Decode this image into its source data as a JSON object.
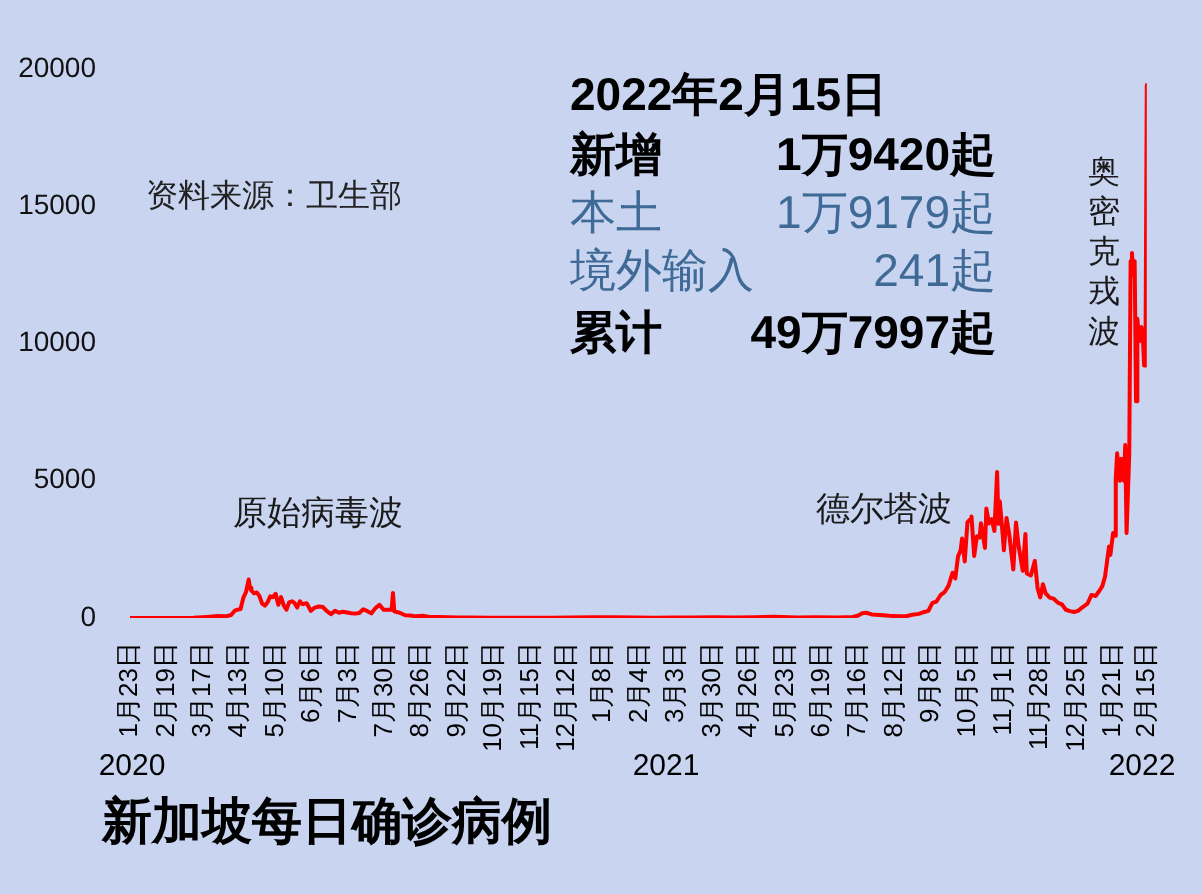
{
  "chart_data": {
    "type": "line",
    "title": "新加坡每日确诊病例",
    "x": [
      "2020-01-23",
      "2020-02-10",
      "2020-02-28",
      "2020-03-10",
      "2020-03-20",
      "2020-03-28",
      "2020-04-03",
      "2020-04-07",
      "2020-04-10",
      "2020-04-14",
      "2020-04-16",
      "2020-04-18",
      "2020-04-20",
      "2020-04-21",
      "2020-04-22",
      "2020-04-24",
      "2020-04-26",
      "2020-04-28",
      "2020-04-30",
      "2020-05-02",
      "2020-05-04",
      "2020-05-06",
      "2020-05-08",
      "2020-05-10",
      "2020-05-12",
      "2020-05-14",
      "2020-05-16",
      "2020-05-18",
      "2020-05-20",
      "2020-05-22",
      "2020-05-24",
      "2020-05-26",
      "2020-05-28",
      "2020-05-30",
      "2020-06-02",
      "2020-06-05",
      "2020-06-08",
      "2020-06-11",
      "2020-06-14",
      "2020-06-17",
      "2020-06-20",
      "2020-06-23",
      "2020-06-26",
      "2020-06-29",
      "2020-07-02",
      "2020-07-05",
      "2020-07-08",
      "2020-07-11",
      "2020-07-14",
      "2020-07-17",
      "2020-07-20",
      "2020-07-23",
      "2020-07-26",
      "2020-07-29",
      "2020-08-01",
      "2020-08-04",
      "2020-08-05",
      "2020-08-06",
      "2020-08-10",
      "2020-08-14",
      "2020-08-18",
      "2020-08-22",
      "2020-08-27",
      "2020-09-01",
      "2020-09-08",
      "2020-09-15",
      "2020-09-22",
      "2020-10-01",
      "2020-10-15",
      "2020-11-01",
      "2020-11-15",
      "2020-12-01",
      "2020-12-15",
      "2020-12-31",
      "2021-01-15",
      "2021-02-01",
      "2021-02-15",
      "2021-03-01",
      "2021-03-15",
      "2021-04-01",
      "2021-04-15",
      "2021-05-01",
      "2021-05-15",
      "2021-06-01",
      "2021-06-15",
      "2021-07-01",
      "2021-07-12",
      "2021-07-16",
      "2021-07-19",
      "2021-07-22",
      "2021-07-26",
      "2021-08-01",
      "2021-08-08",
      "2021-08-15",
      "2021-08-20",
      "2021-08-25",
      "2021-08-30",
      "2021-09-03",
      "2021-09-06",
      "2021-09-09",
      "2021-09-12",
      "2021-09-15",
      "2021-09-18",
      "2021-09-21",
      "2021-09-24",
      "2021-09-26",
      "2021-09-28",
      "2021-09-30",
      "2021-10-01",
      "2021-10-03",
      "2021-10-05",
      "2021-10-07",
      "2021-10-08",
      "2021-10-10",
      "2021-10-12",
      "2021-10-14",
      "2021-10-15",
      "2021-10-18",
      "2021-10-19",
      "2021-10-21",
      "2021-10-23",
      "2021-10-25",
      "2021-10-27",
      "2021-10-28",
      "2021-10-29",
      "2021-10-31",
      "2021-11-01",
      "2021-11-03",
      "2021-11-05",
      "2021-11-08",
      "2021-11-10",
      "2021-11-12",
      "2021-11-15",
      "2021-11-17",
      "2021-11-18",
      "2021-11-21",
      "2021-11-24",
      "2021-11-26",
      "2021-11-28",
      "2021-11-30",
      "2021-12-02",
      "2021-12-05",
      "2021-12-08",
      "2021-12-11",
      "2021-12-14",
      "2021-12-17",
      "2021-12-20",
      "2021-12-23",
      "2021-12-26",
      "2021-12-29",
      "2022-01-02",
      "2022-01-05",
      "2022-01-08",
      "2022-01-11",
      "2022-01-13",
      "2022-01-15",
      "2022-01-18",
      "2022-01-19",
      "2022-01-21",
      "2022-01-22",
      "2022-01-23",
      "2022-01-24",
      "2022-01-25",
      "2022-01-26",
      "2022-01-27",
      "2022-01-28",
      "2022-01-29",
      "2022-01-30",
      "2022-01-31",
      "2022-02-01",
      "2022-02-02",
      "2022-02-03",
      "2022-02-04",
      "2022-02-05",
      "2022-02-06",
      "2022-02-07",
      "2022-02-08",
      "2022-02-09",
      "2022-02-10",
      "2022-02-11",
      "2022-02-12",
      "2022-02-13",
      "2022-02-14",
      "2022-02-15"
    ],
    "values": [
      0,
      0,
      0,
      10,
      40,
      70,
      60,
      110,
      280,
      330,
      730,
      940,
      1400,
      1100,
      1000,
      900,
      930,
      800,
      520,
      450,
      570,
      790,
      760,
      880,
      480,
      760,
      460,
      300,
      570,
      610,
      550,
      380,
      610,
      500,
      540,
      260,
      380,
      420,
      400,
      250,
      140,
      260,
      190,
      230,
      200,
      170,
      160,
      180,
      320,
      250,
      170,
      360,
      480,
      300,
      300,
      300,
      910,
      240,
      190,
      100,
      90,
      60,
      80,
      40,
      40,
      30,
      20,
      20,
      10,
      10,
      10,
      10,
      20,
      30,
      30,
      20,
      10,
      20,
      20,
      30,
      20,
      30,
      50,
      20,
      30,
      20,
      40,
      90,
      170,
      190,
      130,
      110,
      80,
      60,
      60,
      120,
      150,
      220,
      260,
      550,
      600,
      830,
      940,
      1180,
      1650,
      1440,
      2240,
      2480,
      2900,
      2060,
      3490,
      3590,
      3700,
      2260,
      2980,
      2930,
      3450,
      2550,
      3990,
      3440,
      3600,
      3170,
      5320,
      3430,
      4250,
      3110,
      2470,
      3640,
      3040,
      1770,
      3480,
      2610,
      1720,
      3060,
      1620,
      1550,
      2080,
      1090,
      750,
      1230,
      900,
      740,
      700,
      560,
      500,
      300,
      250,
      220,
      260,
      380,
      520,
      840,
      800,
      1000,
      1160,
      1500,
      2600,
      2300,
      3100,
      3000,
      5100,
      6000,
      5400,
      5000,
      5800,
      5200,
      5000,
      6300,
      3100,
      3100,
      6000,
      13000,
      13300,
      12500,
      13000,
      7900,
      10900,
      10300,
      10100,
      10600,
      10300,
      9200,
      9300,
      19420
    ],
    "color": "#ff0000",
    "xlim": [
      "2020-01-23",
      "2022-02-15"
    ],
    "xticks": [
      {
        "value": "2020-01-23",
        "label": "1月23日"
      },
      {
        "value": "2020-02-19",
        "label": "2月19日"
      },
      {
        "value": "2020-03-17",
        "label": "3月17日"
      },
      {
        "value": "2020-04-13",
        "label": "4月13日"
      },
      {
        "value": "2020-05-10",
        "label": "5月10日"
      },
      {
        "value": "2020-06-06",
        "label": "6月6日"
      },
      {
        "value": "2020-07-03",
        "label": "7月3日"
      },
      {
        "value": "2020-07-30",
        "label": "7月30日"
      },
      {
        "value": "2020-08-26",
        "label": "8月26日"
      },
      {
        "value": "2020-09-22",
        "label": "9月22日"
      },
      {
        "value": "2020-10-19",
        "label": "10月19日"
      },
      {
        "value": "2020-11-15",
        "label": "11月15日"
      },
      {
        "value": "2020-12-12",
        "label": "12月12日"
      },
      {
        "value": "2021-01-08",
        "label": "1月8日"
      },
      {
        "value": "2021-02-04",
        "label": "2月4日"
      },
      {
        "value": "2021-03-03",
        "label": "3月3日"
      },
      {
        "value": "2021-03-30",
        "label": "3月30日"
      },
      {
        "value": "2021-04-26",
        "label": "4月26日"
      },
      {
        "value": "2021-05-23",
        "label": "5月23日"
      },
      {
        "value": "2021-06-19",
        "label": "6月19日"
      },
      {
        "value": "2021-07-16",
        "label": "7月16日"
      },
      {
        "value": "2021-08-12",
        "label": "8月12日"
      },
      {
        "value": "2021-09-08",
        "label": "9月8日"
      },
      {
        "value": "2021-10-05",
        "label": "10月5日"
      },
      {
        "value": "2021-11-01",
        "label": "11月1日"
      },
      {
        "value": "2021-11-28",
        "label": "11月28日"
      },
      {
        "value": "2021-12-25",
        "label": "12月25日"
      },
      {
        "value": "2022-01-21",
        "label": "1月21日"
      },
      {
        "value": "2022-02-15",
        "label": "2月15日"
      }
    ],
    "ylim": [
      0,
      20000
    ],
    "yticks": [
      0,
      5000,
      10000,
      15000,
      20000
    ],
    "annotations": [
      "资料来源：卫生部",
      "2022年2月15日",
      "新增",
      "1万9420起",
      "本土",
      "1万9179起",
      "境外输入",
      "241起",
      "累计",
      "49万7997起",
      "原始病毒波",
      "德尔塔波",
      "奥密克戎波",
      "2020",
      "2021",
      "2022"
    ]
  }
}
